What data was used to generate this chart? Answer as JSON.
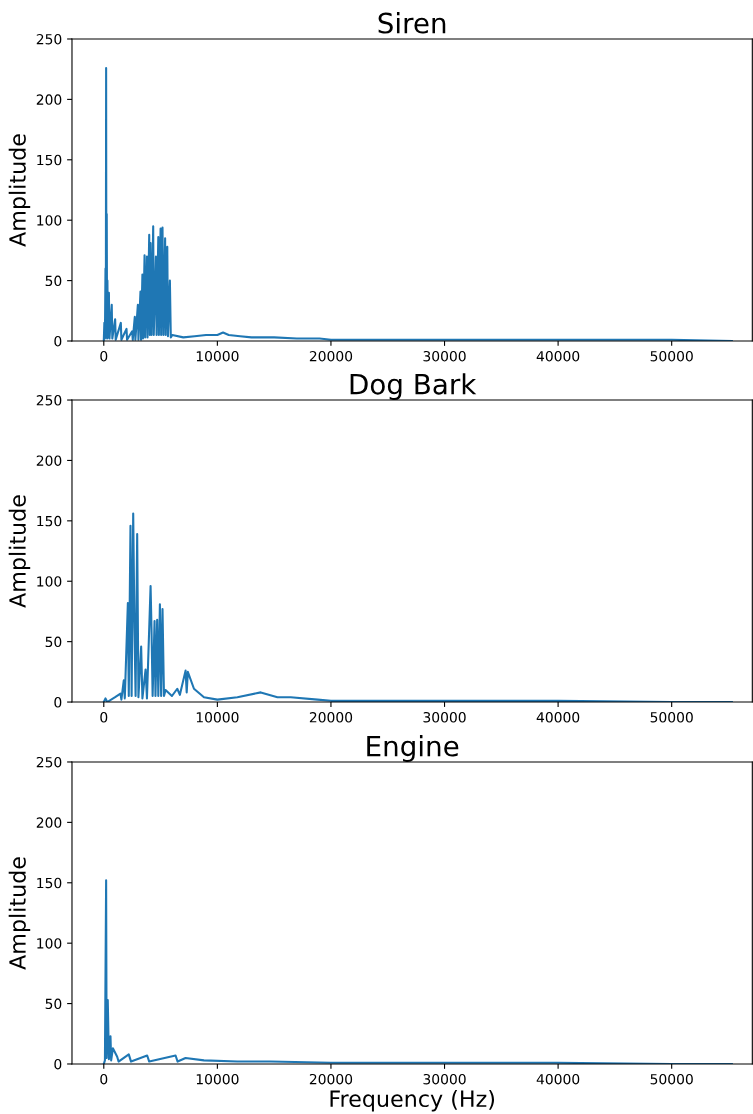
{
  "chart_data": [
    {
      "type": "line",
      "title": "Siren",
      "ylabel": "Amplitude",
      "color": "#1f77b4",
      "x": [
        0,
        50,
        100,
        150,
        180,
        206,
        230,
        260,
        290,
        320,
        360,
        450,
        500,
        700,
        750,
        1000,
        1050,
        1500,
        1550,
        2000,
        2050,
        2500,
        2550,
        2730,
        2780,
        3000,
        3050,
        3230,
        3280,
        3400,
        3450,
        3590,
        3640,
        3800,
        3850,
        4000,
        4050,
        4120,
        4200,
        4350,
        4400,
        4590,
        4650,
        4800,
        4850,
        5000,
        5050,
        5170,
        5250,
        5400,
        5450,
        5590,
        5650,
        5820,
        5900,
        6030,
        7000,
        8000,
        9000,
        10000,
        10500,
        11000,
        12000,
        13000,
        15000,
        17000,
        19000,
        20000,
        30000,
        40000,
        50000,
        55300
      ],
      "values": [
        0,
        15,
        2,
        60,
        5,
        226,
        3,
        105,
        2,
        50,
        3,
        40,
        2,
        30,
        2,
        18,
        1,
        15,
        1,
        10,
        1,
        8,
        1,
        20,
        1,
        30,
        1,
        41,
        1,
        55,
        2,
        71,
        3,
        70,
        3,
        88,
        5,
        81,
        5,
        95,
        5,
        70,
        5,
        86,
        5,
        93,
        5,
        94,
        5,
        85,
        5,
        78,
        4,
        50,
        3,
        5,
        3,
        4,
        5,
        5,
        7,
        5,
        4,
        3,
        3,
        2,
        2,
        1,
        1,
        1,
        1,
        0
      ],
      "xlim": [
        -2800,
        57100
      ],
      "ylim": [
        0,
        250
      ],
      "xticks": [
        0,
        10000,
        20000,
        30000,
        40000,
        50000
      ],
      "yticks": [
        0,
        50,
        100,
        150,
        200,
        250
      ]
    },
    {
      "type": "line",
      "title": "Dog Bark",
      "ylabel": "Amplitude",
      "color": "#1f77b4",
      "x": [
        0,
        150,
        300,
        1000,
        1470,
        1550,
        1760,
        1850,
        2120,
        2200,
        2350,
        2450,
        2590,
        2700,
        2800,
        2940,
        3050,
        3290,
        3400,
        3680,
        3800,
        4120,
        4200,
        4300,
        4470,
        4550,
        4700,
        4800,
        4940,
        5050,
        5170,
        5300,
        5440,
        6000,
        6470,
        6700,
        7200,
        7300,
        7400,
        7940,
        8820,
        10000,
        11760,
        13820,
        15290,
        16460,
        18820,
        20000,
        30000,
        40000,
        50000,
        55300
      ],
      "values": [
        0,
        3,
        0,
        4,
        7,
        2,
        18,
        3,
        82,
        5,
        146,
        5,
        156,
        61,
        5,
        139,
        4,
        46,
        3,
        27,
        3,
        96,
        61,
        5,
        67,
        5,
        68,
        5,
        81,
        5,
        77,
        5,
        10,
        5,
        11,
        6,
        26,
        8,
        25,
        11,
        4,
        2,
        4,
        8,
        4,
        4,
        2,
        1,
        1,
        1,
        0,
        0
      ],
      "xlim": [
        -2800,
        57100
      ],
      "ylim": [
        0,
        250
      ],
      "xticks": [
        0,
        10000,
        20000,
        30000,
        40000,
        50000
      ],
      "yticks": [
        0,
        50,
        100,
        150,
        200,
        250
      ]
    },
    {
      "type": "line",
      "title": "Engine",
      "xlabel": "Frequency (Hz)",
      "ylabel": "Amplitude",
      "color": "#1f77b4",
      "x": [
        0,
        100,
        206,
        250,
        350,
        450,
        590,
        650,
        800,
        1180,
        1300,
        2200,
        2400,
        3820,
        4000,
        6320,
        6500,
        7200,
        8820,
        11760,
        14700,
        20000,
        30000,
        40000,
        50000,
        55300
      ],
      "values": [
        0,
        3,
        152,
        5,
        53,
        4,
        23,
        3,
        13,
        6,
        2,
        8,
        2,
        7,
        2,
        7,
        2,
        5,
        3,
        2,
        2,
        1,
        1,
        1,
        0,
        0
      ],
      "xlim": [
        -2800,
        57100
      ],
      "ylim": [
        0,
        250
      ],
      "xticks": [
        0,
        10000,
        20000,
        30000,
        40000,
        50000
      ],
      "yticks": [
        0,
        50,
        100,
        150,
        200,
        250
      ]
    }
  ]
}
